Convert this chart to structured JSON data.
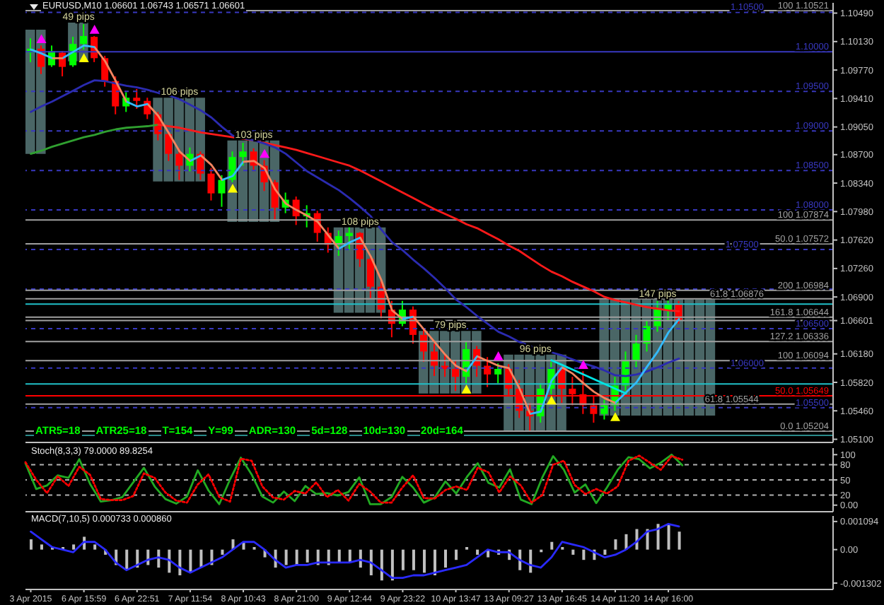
{
  "chart_data": [
    {
      "type": "candlestick",
      "title": "EURUSD,M10 1.06601 1.06743 1.06571 1.06601",
      "annotations": [
        "ATR5=18",
        "ATR25=18",
        "T=154",
        "Y=99",
        "ADR=130",
        "5d=128",
        "10d=130",
        "20d=164",
        {
          "text": "49 pips",
          "y": 1.1037
        },
        {
          "text": "106 pips",
          "y": 1.0942
        },
        {
          "text": "103 pips",
          "y": 1.0888
        },
        {
          "text": "108 pips",
          "y": 1.0778
        },
        {
          "text": "79 pips",
          "y": 1.0647
        },
        {
          "text": "96 pips",
          "y": 1.0617
        },
        {
          "text": "147 pips",
          "y": 1.0687
        }
      ],
      "categories": [
        null,
        null,
        null,
        null,
        null,
        null,
        null,
        null,
        null,
        null,
        null,
        null,
        null,
        null,
        null,
        null,
        null,
        null,
        null,
        null,
        null,
        null,
        null,
        null,
        null,
        null,
        null,
        null,
        null,
        null,
        null,
        null,
        null,
        null,
        null,
        null,
        null,
        null,
        null,
        null,
        null,
        null,
        null,
        null,
        null,
        null,
        null,
        null,
        null,
        null,
        null,
        null,
        null,
        null,
        null,
        null,
        null,
        null,
        null,
        null,
        null,
        null,
        null,
        null,
        null,
        null,
        null,
        null,
        null,
        null,
        null,
        null,
        null,
        null,
        null,
        null
      ],
      "ohlc": [
        [
          1.0999,
          1.1017,
          1.0987,
          1.1004
        ],
        [
          1.1004,
          1.1008,
          1.0972,
          1.0981
        ],
        [
          1.0983,
          1.1008,
          1.0981,
          1.1001
        ],
        [
          1.0999,
          1.1001,
          1.0969,
          1.0981
        ],
        [
          1.0983,
          1.1019,
          1.0981,
          1.101
        ],
        [
          1.101,
          1.1035,
          1.1003,
          1.102
        ],
        [
          1.1019,
          1.102,
          1.0987,
          1.0992
        ],
        [
          1.0992,
          1.0995,
          1.0956,
          1.0963
        ],
        [
          1.0963,
          1.0969,
          1.0921,
          1.0931
        ],
        [
          1.0931,
          1.0949,
          1.0924,
          1.0942
        ],
        [
          1.0942,
          1.0953,
          1.0928,
          1.0938
        ],
        [
          1.0938,
          1.0942,
          1.0915,
          1.0921
        ],
        [
          1.0921,
          1.0924,
          1.0888,
          1.0896
        ],
        [
          1.0896,
          1.0899,
          1.0862,
          1.0871
        ],
        [
          1.0871,
          1.0878,
          1.0838,
          1.0856
        ],
        [
          1.0856,
          1.0879,
          1.0849,
          1.0871
        ],
        [
          1.0871,
          1.0874,
          1.0838,
          1.0846
        ],
        [
          1.0846,
          1.0853,
          1.0812,
          1.0821
        ],
        [
          1.0821,
          1.0844,
          1.0804,
          1.0838
        ],
        [
          1.0838,
          1.0874,
          1.0835,
          1.0867
        ],
        [
          1.0867,
          1.0885,
          1.0856,
          1.0874
        ],
        [
          1.0874,
          1.0878,
          1.0849,
          1.0856
        ],
        [
          1.0856,
          1.0863,
          1.0824,
          1.0835
        ],
        [
          1.0835,
          1.0838,
          1.0787,
          1.0803
        ],
        [
          1.0803,
          1.0822,
          1.0796,
          1.0813
        ],
        [
          1.0813,
          1.0817,
          1.0781,
          1.0792
        ],
        [
          1.0792,
          1.0806,
          1.0778,
          1.0796
        ],
        [
          1.0796,
          1.0799,
          1.076,
          1.0771
        ],
        [
          1.0771,
          1.0778,
          1.0746,
          1.0756
        ],
        [
          1.0756,
          1.0774,
          1.0742,
          1.0767
        ],
        [
          1.0767,
          1.0778,
          1.0749,
          1.0771
        ],
        [
          1.0771,
          1.0772,
          1.0728,
          1.0738
        ],
        [
          1.0738,
          1.0742,
          1.0688,
          1.0703
        ],
        [
          1.0703,
          1.071,
          1.0663,
          1.0674
        ],
        [
          1.0674,
          1.0685,
          1.0639,
          1.0656
        ],
        [
          1.0656,
          1.0685,
          1.0653,
          1.0674
        ],
        [
          1.0674,
          1.0678,
          1.0631,
          1.0642
        ],
        [
          1.0642,
          1.0649,
          1.0608,
          1.0621
        ],
        [
          1.0621,
          1.0631,
          1.059,
          1.0603
        ],
        [
          1.0603,
          1.0617,
          1.0589,
          1.0599
        ],
        [
          1.0599,
          1.061,
          1.0571,
          1.0589
        ],
        [
          1.0589,
          1.0633,
          1.0581,
          1.0624
        ],
        [
          1.0624,
          1.0628,
          1.0589,
          1.0603
        ],
        [
          1.0603,
          1.0614,
          1.0576,
          1.0592
        ],
        [
          1.0592,
          1.0606,
          1.0581,
          1.0599
        ],
        [
          1.0599,
          1.0605,
          1.0564,
          1.0574
        ],
        [
          1.0574,
          1.0585,
          1.0537,
          1.0546
        ],
        [
          1.0546,
          1.0556,
          1.052,
          1.0539
        ],
        [
          1.0539,
          1.0581,
          1.0531,
          1.0574
        ],
        [
          1.0574,
          1.0608,
          1.0567,
          1.0599
        ],
        [
          1.0599,
          1.0603,
          1.0556,
          1.0574
        ],
        [
          1.0574,
          1.0589,
          1.0553,
          1.0567
        ],
        [
          1.0567,
          1.0596,
          1.0542,
          1.0553
        ],
        [
          1.0553,
          1.0564,
          1.0531,
          1.0542
        ],
        [
          1.0542,
          1.056,
          1.0535,
          1.0553
        ],
        [
          1.0553,
          1.0589,
          1.0546,
          1.0578
        ],
        [
          1.0578,
          1.0621,
          1.0571,
          1.061
        ],
        [
          1.061,
          1.0642,
          1.0599,
          1.0631
        ],
        [
          1.0631,
          1.066,
          1.0621,
          1.0653
        ],
        [
          1.0653,
          1.0685,
          1.0646,
          1.0674
        ],
        [
          1.0674,
          1.0688,
          1.066,
          1.0681
        ],
        [
          1.0681,
          1.0685,
          1.0656,
          1.06601
        ],
        null,
        null,
        null,
        null,
        null,
        null,
        null,
        null,
        null,
        null,
        null,
        null,
        null,
        null
      ],
      "colors": [
        "#00ff00",
        "#ff0000",
        "#00ff00",
        "#ff0000",
        "#00ff00",
        "#00ff00",
        "#ff0000",
        "#ff0000",
        "#ff0000",
        "#00ff00",
        "#ff0000",
        "#ff0000",
        "#ff0000",
        "#ff0000",
        "#ff0000",
        "#00ff00",
        "#ff0000",
        "#ff0000",
        "#00ff00",
        "#00ff00",
        "#00ff00",
        "#ff0000",
        "#ff0000",
        "#ff0000",
        "#00ff00",
        "#ff0000",
        "#00ff00",
        "#ff0000",
        "#ff0000",
        "#00ff00",
        "#00ff00",
        "#ff0000",
        "#ff0000",
        "#ff0000",
        "#ff0000",
        "#00ff00",
        "#ff0000",
        "#ff0000",
        "#ff0000",
        "#ff0000",
        "#ff0000",
        "#00ff00",
        "#ff0000",
        "#ff0000",
        "#00ff00",
        "#ff0000",
        "#ff0000",
        "#ff0000",
        "#00ff00",
        "#00ff00",
        "#ff0000",
        "#ff0000",
        "#ff0000",
        "#ff0000",
        "#00ff00",
        "#00ff00",
        "#00ff00",
        "#00ff00",
        "#00ff00",
        "#00ff00",
        "#00ff00",
        "#ff0000",
        null,
        null,
        null,
        null,
        null,
        null,
        null,
        null,
        null,
        null,
        null,
        null,
        null,
        null
      ],
      "series": [
        {
          "type": "bar",
          "color": "#4a6666",
          "base": [
            1.0871,
            1.0871,
            null,
            null,
            1.0988,
            1.0988,
            null,
            null,
            null,
            null,
            null,
            null,
            1.0836,
            1.0836,
            1.0836,
            1.0836,
            1.0836,
            null,
            null,
            1.0785,
            1.0785,
            1.0785,
            1.0785,
            1.0785,
            null,
            null,
            null,
            null,
            null,
            1.067,
            1.067,
            1.067,
            1.067,
            1.067,
            null,
            null,
            null,
            1.0568,
            1.0568,
            1.0568,
            1.0568,
            1.0568,
            1.0568,
            null,
            null,
            1.0521,
            1.0521,
            1.0521,
            1.0521,
            1.0521,
            1.0521,
            null,
            null,
            null,
            1.054,
            1.054,
            1.054,
            1.054,
            1.054,
            1.054,
            1.054,
            1.054,
            1.054,
            1.054,
            1.054,
            null,
            null,
            null,
            null,
            null,
            null,
            null,
            null,
            null,
            null,
            null
          ],
          "values": [
            0.0157,
            0.0157,
            null,
            null,
            0.0049,
            0.0049,
            null,
            null,
            null,
            null,
            null,
            null,
            0.0106,
            0.0106,
            0.0106,
            0.0106,
            0.0106,
            null,
            null,
            0.0103,
            0.0103,
            0.0103,
            0.0103,
            0.0103,
            null,
            null,
            null,
            null,
            null,
            0.0108,
            0.0108,
            0.0108,
            0.0108,
            0.0108,
            null,
            null,
            null,
            0.0079,
            0.0079,
            0.0079,
            0.0079,
            0.0079,
            0.0079,
            null,
            null,
            0.0096,
            0.0096,
            0.0096,
            0.0096,
            0.0096,
            0.0096,
            null,
            null,
            null,
            0.0147,
            0.0147,
            0.0147,
            0.0147,
            0.0147,
            0.0147,
            0.0147,
            0.0147,
            0.0147,
            0.0147,
            0.0147,
            null,
            null,
            null,
            null,
            null,
            null,
            null,
            null,
            null,
            null,
            null
          ]
        },
        {
          "type": "line",
          "color": "#30a030",
          "values": [
            1.0871,
            1.0875,
            1.088,
            1.0884,
            1.0888,
            1.0892,
            1.0895,
            1.0899,
            1.0902,
            1.0904,
            1.0905,
            1.0906,
            1.0908,
            null,
            null,
            null,
            null,
            null,
            null,
            null,
            null,
            null,
            null,
            null,
            null,
            null,
            null,
            null,
            null,
            null,
            null,
            null,
            null,
            null,
            null,
            null,
            null,
            null,
            null,
            null,
            null,
            null,
            null,
            null,
            null,
            null,
            null,
            null,
            null,
            null,
            null,
            null,
            null,
            null,
            null,
            null,
            null,
            null,
            null,
            null,
            null,
            null,
            null,
            null,
            null,
            null,
            null,
            null,
            null,
            null,
            null,
            null,
            null,
            null,
            null,
            null
          ]
        },
        {
          "type": "line",
          "color": "#ff1a1a",
          "values": [
            null,
            null,
            null,
            null,
            null,
            null,
            null,
            null,
            null,
            null,
            null,
            null,
            1.0908,
            1.0906,
            1.0904,
            1.0901,
            1.0898,
            1.0896,
            1.0894,
            1.0892,
            1.089,
            1.0888,
            1.0885,
            1.0882,
            1.0879,
            1.0876,
            1.0872,
            1.0868,
            1.0864,
            1.086,
            1.0856,
            1.085,
            1.0843,
            1.0836,
            1.0829,
            1.0822,
            1.0815,
            1.0808,
            1.0801,
            1.0795,
            1.0789,
            1.0782,
            1.0777,
            1.077,
            1.0763,
            1.0755,
            1.0748,
            1.0739,
            1.073,
            1.0722,
            1.0716,
            1.0709,
            1.0703,
            1.0697,
            1.069,
            1.0686,
            1.0683,
            1.068,
            1.0677,
            1.0675,
            1.0673,
            1.0672,
            null,
            null,
            null,
            null,
            null,
            null,
            null,
            null,
            null,
            null,
            null,
            null,
            null,
            null
          ]
        },
        {
          "type": "line",
          "color": "#2b2bb0",
          "values": [
            1.0924,
            1.0931,
            1.0937,
            1.0944,
            1.0951,
            1.0958,
            1.0964,
            1.0963,
            1.096,
            1.0957,
            1.0955,
            1.0952,
            1.0948,
            1.0945,
            1.094,
            1.0933,
            1.0926,
            1.0917,
            1.0905,
            1.0894,
            1.0891,
            1.0888,
            1.0884,
            1.0879,
            1.0871,
            1.086,
            1.0849,
            1.0841,
            1.0833,
            1.0825,
            1.0815,
            1.0804,
            1.0792,
            1.0775,
            1.0759,
            1.0749,
            1.0737,
            1.0726,
            1.0714,
            1.0701,
            1.0687,
            1.0677,
            1.0666,
            1.0656,
            1.0646,
            1.064,
            1.0633,
            1.0628,
            1.0624,
            1.062,
            1.0616,
            1.0611,
            1.0606,
            1.0602,
            1.0597,
            1.0591,
            1.059,
            1.0592,
            1.0596,
            1.0601,
            1.0607,
            1.0612,
            null,
            null,
            null,
            null,
            null,
            null,
            null,
            null,
            null,
            null,
            null,
            null,
            null,
            null
          ]
        },
        {
          "type": "line",
          "values": [
            1.1003,
            1.0998,
            1.0992,
            1.0992,
            1.1,
            1.1008,
            1.1006,
            1.0988,
            1.0963,
            1.0937,
            1.0931,
            1.0934,
            1.0919,
            1.0897,
            1.0874,
            1.0862,
            1.0869,
            1.0857,
            1.0838,
            1.0843,
            1.0861,
            1.0862,
            1.0853,
            1.0826,
            1.0808,
            1.08,
            1.0793,
            1.0785,
            1.0768,
            1.0751,
            1.0759,
            1.0765,
            1.0741,
            1.0711,
            1.0673,
            1.0662,
            1.0665,
            1.0649,
            1.0633,
            1.0617,
            1.0603,
            1.0596,
            1.0615,
            1.0609,
            1.0603,
            1.06,
            1.0574,
            1.0542,
            1.0545,
            1.0584,
            1.0601,
            1.0593,
            1.0581,
            1.057,
            1.0562,
            1.0556,
            1.0569,
            1.0582,
            1.0602,
            1.0621,
            1.0645,
            1.0662,
            null,
            null,
            null,
            null,
            null,
            null,
            null,
            null,
            null,
            null,
            null,
            null,
            null,
            null
          ],
          "colors": [
            "#33bbff",
            "#33bbff",
            "#f4845f",
            "#33bbff",
            "#33bbff",
            "#33bbff",
            "#f4845f",
            "#f4845f",
            "#f4845f",
            "#33bbff",
            "#33bbff",
            "#f4845f",
            "#f4845f",
            "#f4845f",
            "#f4845f",
            "#33bbff",
            "#f4845f",
            "#f4845f",
            "#33bbff",
            "#33bbff",
            "#f4845f",
            "#f4845f",
            "#f4845f",
            "#f4845f",
            "#f4845f",
            "#f4845f",
            "#f4845f",
            "#f4845f",
            "#f4845f",
            "#33bbff",
            "#33bbff",
            "#f4845f",
            "#f4845f",
            "#f4845f",
            "#f4845f",
            "#33bbff",
            "#f4845f",
            "#f4845f",
            "#f4845f",
            "#f4845f",
            "#f4845f",
            "#33bbff",
            "#f4845f",
            "#f4845f",
            "#f4845f",
            "#f4845f",
            "#f4845f",
            "#33bbff",
            "#33bbff",
            "#33bbff",
            "#f4845f",
            "#f4845f",
            "#f4845f",
            "#f4845f",
            "#f4845f",
            "#33bbff",
            "#33bbff",
            "#33bbff",
            "#33bbff",
            "#33bbff",
            "#33bbff",
            "#33bbff",
            null,
            null,
            null,
            null,
            null,
            null,
            null,
            null,
            null,
            null,
            null,
            null,
            null,
            null
          ]
        },
        {
          "type": "line",
          "color": "#00e5e5",
          "values": [
            null,
            null,
            null,
            null,
            null,
            null,
            null,
            null,
            null,
            null,
            null,
            null,
            null,
            null,
            null,
            null,
            null,
            null,
            null,
            null,
            null,
            null,
            null,
            null,
            null,
            null,
            null,
            null,
            null,
            null,
            null,
            null,
            null,
            null,
            null,
            null,
            null,
            null,
            null,
            null,
            null,
            null,
            null,
            null,
            null,
            null,
            null,
            null,
            null,
            1.061,
            1.0604,
            1.0598,
            1.0592,
            1.0586,
            1.058,
            1.0574,
            1.0568,
            null,
            null,
            null,
            null,
            null,
            null,
            null,
            null,
            null,
            null,
            null,
            null,
            null,
            null,
            null,
            null,
            null,
            null,
            null
          ]
        },
        {
          "type": "scatter",
          "color": "#ffff00",
          "marker": "triangle",
          "values": [
            null,
            null,
            null,
            null,
            null,
            1.0992,
            null,
            null,
            null,
            null,
            null,
            null,
            null,
            null,
            null,
            null,
            null,
            null,
            null,
            1.0827,
            null,
            null,
            null,
            null,
            null,
            null,
            null,
            null,
            null,
            null,
            null,
            null,
            null,
            null,
            null,
            null,
            null,
            null,
            null,
            null,
            null,
            1.0573,
            null,
            null,
            null,
            null,
            null,
            null,
            null,
            1.0559,
            null,
            null,
            null,
            null,
            null,
            1.0538,
            null,
            null,
            null,
            null,
            null,
            null,
            null,
            null,
            null,
            null,
            null,
            null,
            null,
            null,
            null,
            null,
            null,
            null,
            null,
            null
          ]
        },
        {
          "type": "scatter",
          "color": "#ff00ff",
          "marker": "triangle",
          "values": [
            null,
            1.1016,
            null,
            null,
            null,
            null,
            1.1028,
            null,
            null,
            null,
            null,
            null,
            null,
            null,
            null,
            null,
            null,
            null,
            null,
            null,
            null,
            null,
            1.0871,
            null,
            null,
            null,
            null,
            null,
            null,
            null,
            null,
            null,
            null,
            null,
            null,
            null,
            null,
            null,
            null,
            null,
            null,
            null,
            null,
            null,
            1.0615,
            null,
            null,
            null,
            null,
            null,
            null,
            null,
            1.0604,
            null,
            null,
            null,
            null,
            null,
            null,
            null,
            null,
            null,
            null,
            null,
            null,
            null,
            null,
            null,
            null,
            null,
            null,
            null,
            null,
            null,
            null,
            null
          ]
        }
      ],
      "ylim": [
        1.0506,
        1.1062
      ],
      "yticks": [
        {
          "value": 1.1049,
          "label": "1.10490"
        },
        {
          "value": 1.1013,
          "label": "1.10130"
        },
        {
          "value": 1.0977,
          "label": "1.09770"
        },
        {
          "value": 1.0941,
          "label": "1.09410"
        },
        {
          "value": 1.0905,
          "label": "1.09050"
        },
        {
          "value": 1.087,
          "label": "1.08700"
        },
        {
          "value": 1.0834,
          "label": "1.08340"
        },
        {
          "value": 1.0798,
          "label": "1.07980"
        },
        {
          "value": 1.0762,
          "label": "1.07620"
        },
        {
          "value": 1.0726,
          "label": "1.07260"
        },
        {
          "value": 1.069,
          "label": "1.06900"
        },
        {
          "value": 1.06601,
          "label": "1.06601"
        },
        {
          "value": 1.0618,
          "label": "1.06180"
        },
        {
          "value": 1.0582,
          "label": "1.05820"
        },
        {
          "value": 1.0546,
          "label": "1.05460"
        },
        {
          "value": 1.051,
          "label": "1.05100"
        }
      ],
      "tick_labels": "y",
      "ref_lines": [
        {
          "axis": "y",
          "value": 1.10521,
          "label": "100 1.10521",
          "color": "#a0a0a0",
          "line_style": "solid"
        },
        {
          "axis": "y",
          "value": 1.105,
          "label": "1.10500",
          "color": "#3838c0",
          "line_style": "dashed"
        },
        {
          "axis": "y",
          "value": 1.1,
          "label": "1.10000",
          "color": "#3838c0",
          "line_style": "solid"
        },
        {
          "axis": "y",
          "value": 1.095,
          "label": "1.09500",
          "color": "#3838c0",
          "line_style": "dashed"
        },
        {
          "axis": "y",
          "value": 1.09,
          "label": "1.09000",
          "color": "#3838c0",
          "line_style": "dashed"
        },
        {
          "axis": "y",
          "value": 1.085,
          "label": "1.08500",
          "color": "#3838c0",
          "line_style": "dashed"
        },
        {
          "axis": "y",
          "value": 1.08,
          "label": "1.08000",
          "color": "#3838c0",
          "line_style": "dashed"
        },
        {
          "axis": "y",
          "value": 1.07874,
          "label": "100 1.07874",
          "color": "#a0a0a0",
          "line_style": "solid"
        },
        {
          "axis": "y",
          "value": 1.07572,
          "label": "50.0 1.07572",
          "color": "#a0a0a0",
          "line_style": "solid"
        },
        {
          "axis": "y",
          "value": 1.075,
          "label": "1.07500",
          "color": "#3838c0",
          "line_style": "dashed"
        },
        {
          "axis": "y",
          "value": 1.07,
          "color": "#3838c0",
          "line_style": "dashed"
        },
        {
          "axis": "y",
          "value": 1.06984,
          "label": "200 1.06984",
          "color": "#a0a0a0",
          "line_style": "solid"
        },
        {
          "axis": "y",
          "value": 1.06876,
          "label": "61.8 1.06876",
          "color": "#a0a0a0",
          "line_style": "solid"
        },
        {
          "axis": "y",
          "value": 1.0681,
          "color": "#20c0c8",
          "line_style": "solid"
        },
        {
          "axis": "y",
          "value": 1.06644,
          "label": "161.8 1.06644",
          "color": "#a0a0a0",
          "line_style": "solid"
        },
        {
          "axis": "y",
          "value": 1.06601,
          "color": "#a0a0a0",
          "line_style": "solid"
        },
        {
          "axis": "y",
          "value": 1.065,
          "label": "1.06500",
          "color": "#3838c0",
          "line_style": "dashed"
        },
        {
          "axis": "y",
          "value": 1.06336,
          "label": "127.2 1.06336",
          "color": "#a0a0a0",
          "line_style": "solid"
        },
        {
          "axis": "y",
          "value": 1.06094,
          "label": "100 1.06094",
          "color": "#a0a0a0",
          "line_style": "solid"
        },
        {
          "axis": "y",
          "value": 1.06,
          "label": "1.06000",
          "color": "#3838c0",
          "line_style": "dashed"
        },
        {
          "axis": "y",
          "value": 1.058,
          "color": "#20c0c8",
          "line_style": "solid"
        },
        {
          "axis": "y",
          "value": 1.05649,
          "label": "50.0 1.05649",
          "color": "#ff0000",
          "line_style": "solid"
        },
        {
          "axis": "y",
          "value": 1.05544,
          "label": "61.8 1.05544",
          "color": "#a0a0a0",
          "line_style": "solid"
        },
        {
          "axis": "y",
          "value": 1.055,
          "label": "1.05500",
          "color": "#3838c0",
          "line_style": "dashed"
        },
        {
          "axis": "y",
          "value": 1.05204,
          "label": "0.0 1.05204",
          "color": "#a0a0a0",
          "line_style": "solid"
        },
        {
          "axis": "y",
          "value": 1.0515,
          "color": "#2a8a8a",
          "line_style": "solid"
        }
      ]
    },
    {
      "type": "line",
      "title": "Stoch(8,3,3) 79.0000 89.8254",
      "categories": [
        null,
        null,
        null,
        null,
        null,
        null,
        null,
        null,
        null,
        null,
        null,
        null,
        null,
        null,
        null,
        null,
        null,
        null,
        null,
        null,
        null,
        null,
        null,
        null,
        null,
        null,
        null,
        null,
        null,
        null,
        null,
        null,
        null,
        null,
        null,
        null,
        null,
        null,
        null,
        null,
        null,
        null,
        null,
        null,
        null,
        null,
        null,
        null,
        null,
        null,
        null,
        null,
        null,
        null,
        null,
        null,
        null,
        null,
        null,
        null,
        null,
        null,
        null,
        null,
        null,
        null,
        null,
        null,
        null,
        null,
        null,
        null,
        null,
        null,
        null,
        null
      ],
      "series": [
        {
          "color": "#22aa22",
          "line_style": "solid",
          "values": [
            83,
            32,
            39,
            59,
            54,
            91,
            42,
            7,
            10,
            16,
            45,
            74,
            37,
            12,
            3,
            17,
            69,
            29,
            2,
            51,
            94,
            61,
            17,
            5,
            27,
            8,
            38,
            22,
            24,
            19,
            26,
            55,
            2,
            2,
            16,
            56,
            35,
            5,
            15,
            47,
            23,
            56,
            83,
            44,
            35,
            71,
            11,
            2,
            55,
            97,
            70,
            25,
            41,
            4,
            35,
            70,
            95,
            91,
            73,
            84,
            100,
            79,
            null,
            null,
            null,
            null,
            null,
            null,
            null,
            null,
            null,
            null,
            null,
            null,
            null,
            null
          ]
        },
        {
          "color": "#ff0000",
          "line_style": "dotted",
          "values": [
            85,
            50,
            24,
            57,
            38,
            76,
            60,
            12,
            10,
            10,
            18,
            63,
            54,
            25,
            9,
            5,
            41,
            61,
            16,
            7,
            92,
            88,
            37,
            15,
            11,
            28,
            23,
            45,
            16,
            30,
            9,
            42,
            27,
            5,
            5,
            35,
            59,
            14,
            13,
            30,
            37,
            30,
            74,
            65,
            25,
            57,
            39,
            5,
            20,
            80,
            88,
            40,
            22,
            32,
            23,
            37,
            88,
            98,
            84,
            70,
            97,
            90,
            null,
            null,
            null,
            null,
            null,
            null,
            null,
            null,
            null,
            null,
            null,
            null,
            null,
            null
          ]
        }
      ],
      "ylim": [
        -13,
        113
      ],
      "yticks": [
        100,
        80,
        50,
        20,
        {
          "value": 0,
          "label": "0.00"
        }
      ],
      "tick_labels": "y",
      "ref_lines": [
        {
          "axis": "y",
          "value": 80,
          "color": "#b0b0b0",
          "line_style": "dashed"
        },
        {
          "axis": "y",
          "value": 50,
          "color": "#b0b0b0",
          "line_style": "dashed"
        },
        {
          "axis": "y",
          "value": 20,
          "color": "#b0b0b0",
          "line_style": "dashed"
        }
      ]
    },
    {
      "type": "bar",
      "title": "MACD(7,10,5) 0.000733 0.000860",
      "categories": [
        "3 Apr 2015",
        null,
        null,
        null,
        null,
        "6 Apr 15:59",
        null,
        null,
        null,
        null,
        "6 Apr 22:51",
        null,
        null,
        null,
        null,
        "7 Apr 11:54",
        null,
        null,
        null,
        null,
        "8 Apr 10:43",
        null,
        null,
        null,
        null,
        "8 Apr 21:00",
        null,
        null,
        null,
        null,
        "9 Apr 12:44",
        null,
        null,
        null,
        null,
        "9 Apr 23:22",
        null,
        null,
        null,
        null,
        "10 Apr 13:47",
        null,
        null,
        null,
        null,
        "13 Apr 09:27",
        null,
        null,
        null,
        null,
        "13 Apr 16:45",
        null,
        null,
        null,
        null,
        "14 Apr 11:20",
        null,
        null,
        null,
        null,
        "14 Apr 16:00",
        null,
        null,
        null,
        null,
        null,
        null,
        null,
        null,
        null,
        null,
        null,
        null,
        null,
        null,
        null
      ],
      "series": [
        {
          "color": "#c0c0c0",
          "values": [
            0.0004,
            0.0002,
            0.0001,
            0.0001,
            0.0002,
            0.0005,
            0.0002,
            -0.0002,
            -0.0006,
            -0.0008,
            -0.0007,
            -0.0006,
            -0.0007,
            -0.0009,
            -0.001,
            -0.0009,
            -0.0007,
            -0.0006,
            -0.0002,
            0.0004,
            0.0003,
            0.0001,
            -0.0003,
            -0.0007,
            -0.0006,
            -0.0006,
            -0.0005,
            -0.0006,
            -0.0006,
            -0.0005,
            -0.0005,
            -0.0007,
            -0.001,
            -0.0012,
            -0.0012,
            -0.0008,
            -0.0008,
            -0.0009,
            -0.001,
            -0.0007,
            -0.0004,
            0.0001,
            -0.0002,
            -0.0003,
            -0.0002,
            -0.0004,
            -0.0008,
            -0.0009,
            -0.0001,
            0.0003,
            0.0001,
            -0.0002,
            -0.0004,
            -0.0004,
            -0.0002,
            0.0004,
            0.0006,
            0.0008,
            0.0008,
            0.001,
            0.001,
            0.0007,
            null,
            null,
            null,
            null,
            null,
            null,
            null,
            null,
            null,
            null,
            null,
            null,
            null,
            null
          ]
        },
        {
          "type": "line",
          "color": "#2a2aff",
          "values": [
            0.0007,
            0.0004,
            0.0001,
            0,
            -0.0001,
            0.0003,
            0.0003,
            0,
            -0.0005,
            -0.0008,
            -0.0006,
            -0.0004,
            -0.0003,
            -0.0004,
            -0.0007,
            -0.0009,
            -0.0007,
            -0.0005,
            -0.0003,
            0,
            0.0003,
            0.0003,
            0,
            -0.0004,
            -0.0007,
            -0.0006,
            -0.0006,
            -0.0005,
            -0.0005,
            -0.0005,
            -0.0005,
            -0.0004,
            -0.0005,
            -0.0008,
            -0.0011,
            -0.0011,
            -0.001,
            -0.001,
            -0.0009,
            -0.0008,
            -0.0007,
            -0.0006,
            -0.0003,
            0,
            -0.0001,
            -0.0001,
            -0.0004,
            -0.0006,
            -0.0007,
            -0.0003,
            0.0003,
            0.0002,
            0.0001,
            -0.0001,
            -0.0003,
            -0.0002,
            0,
            0.0003,
            0.0007,
            0.0008,
            0.001,
            0.0009,
            null,
            null,
            null,
            null,
            null,
            null,
            null,
            null,
            null,
            null,
            null,
            null,
            null,
            null
          ]
        }
      ],
      "ylim": [
        -0.00155,
        0.00131
      ],
      "yticks": [
        0.001094,
        {
          "value": 0,
          "label": "0.00"
        },
        -0.001302
      ]
    }
  ]
}
